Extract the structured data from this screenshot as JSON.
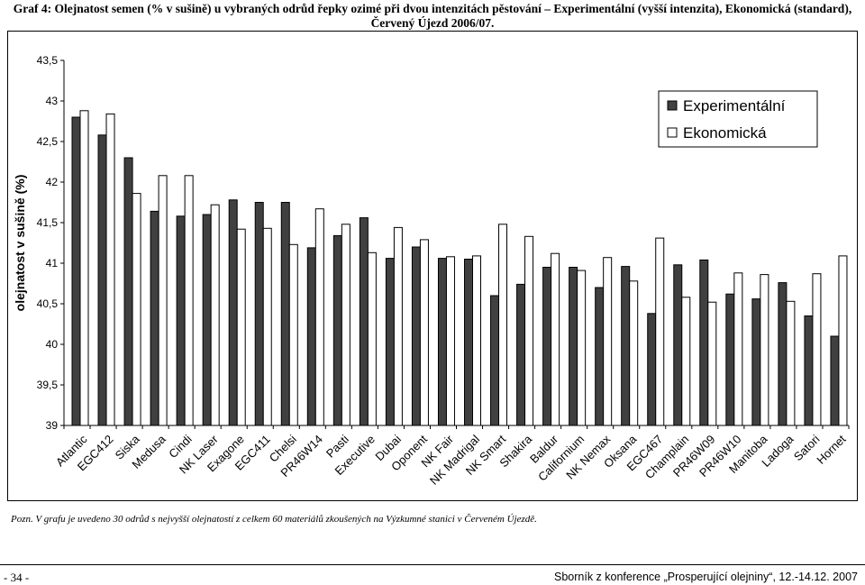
{
  "caption": {
    "line1": "Graf 4: Olejnatost semen  (% v sušině) u vybraných odrůd řepky ozimé při dvou intenzitách pěstování – Experimentální (vyšší intenzita), Ekonomická (standard),",
    "line2": "Červený Újezd 2006/07."
  },
  "note": "Pozn. V grafu je uvedeno 30 odrůd s nejvyšší olejnatostí z celkem 60 materiálů zkoušených na Výzkumné stanici v Červeném Újezdě.",
  "footer": {
    "page": "- 34 -",
    "source": "Sborník z konference „Prosperující olejniny“, 12.-14.12. 2007"
  },
  "colors": {
    "experimentalni": "#404040",
    "ekonomicka": "#ffffff",
    "stroke": "#000000"
  },
  "chart_data": {
    "type": "bar",
    "ylabel": "olejnatost v sušině (%)",
    "ylim": [
      39,
      43.5
    ],
    "yticks": [
      "39",
      "39,5",
      "40",
      "40,5",
      "41",
      "41,5",
      "42",
      "42,5",
      "43",
      "43,5"
    ],
    "legend_position": "top-right",
    "categories": [
      "Atlantic",
      "EGC412",
      "Siska",
      "Medusa",
      "Cindi",
      "NK Laser",
      "Exagone",
      "EGC411",
      "Chelsi",
      "PR46W14",
      "Pasti",
      "Executive",
      "Dubai",
      "Oponent",
      "NK Fair",
      "NK Madrigal",
      "NK Smart",
      "Shakira",
      "Baldur",
      "Californium",
      "NK Nemax",
      "Oksana",
      "EGC467",
      "Champlain",
      "PR46W09",
      "PR46W10",
      "Manitoba",
      "Ladoga",
      "Satori",
      "Hornet"
    ],
    "series": [
      {
        "name": "Experimentální",
        "values": [
          42.8,
          42.58,
          42.3,
          41.64,
          41.58,
          41.6,
          41.78,
          41.75,
          41.75,
          41.19,
          41.34,
          41.56,
          41.06,
          41.2,
          41.06,
          41.05,
          40.6,
          40.74,
          40.95,
          40.95,
          40.7,
          40.96,
          40.38,
          40.98,
          41.04,
          40.62,
          40.56,
          40.76,
          40.35,
          40.1
        ]
      },
      {
        "name": "Ekonomická",
        "values": [
          42.88,
          42.84,
          41.86,
          42.08,
          42.08,
          41.72,
          41.42,
          41.43,
          41.23,
          41.67,
          41.48,
          41.13,
          41.44,
          41.29,
          41.08,
          41.09,
          41.48,
          41.33,
          41.12,
          40.91,
          41.07,
          40.78,
          41.31,
          40.58,
          40.52,
          40.88,
          40.86,
          40.53,
          40.87,
          41.09
        ]
      }
    ]
  }
}
